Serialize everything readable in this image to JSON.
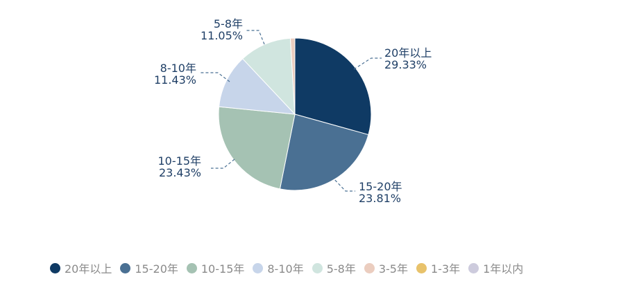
{
  "chart_data": {
    "type": "pie",
    "title": "",
    "legend_position": "bottom",
    "categories": [
      "20年以上",
      "15-20年",
      "10-15年",
      "8-10年",
      "5-8年",
      "3-5年",
      "1-3年",
      "1年以内"
    ],
    "values": [
      29.33,
      23.81,
      23.43,
      11.43,
      11.05,
      0.95,
      0,
      0
    ],
    "colors": [
      "#0f3a64",
      "#4a7093",
      "#a5c2b3",
      "#c7d5ea",
      "#d0e5df",
      "#ebcdbf",
      "#e8c26b",
      "#cdcbdd"
    ],
    "slice_labels": [
      {
        "name": "20年以上",
        "percent": "29.33%"
      },
      {
        "name": "15-20年",
        "percent": "23.81%"
      },
      {
        "name": "10-15年",
        "percent": "23.43%"
      },
      {
        "name": "8-10年",
        "percent": "11.43%"
      },
      {
        "name": "5-8年",
        "percent": "11.05%"
      }
    ]
  }
}
